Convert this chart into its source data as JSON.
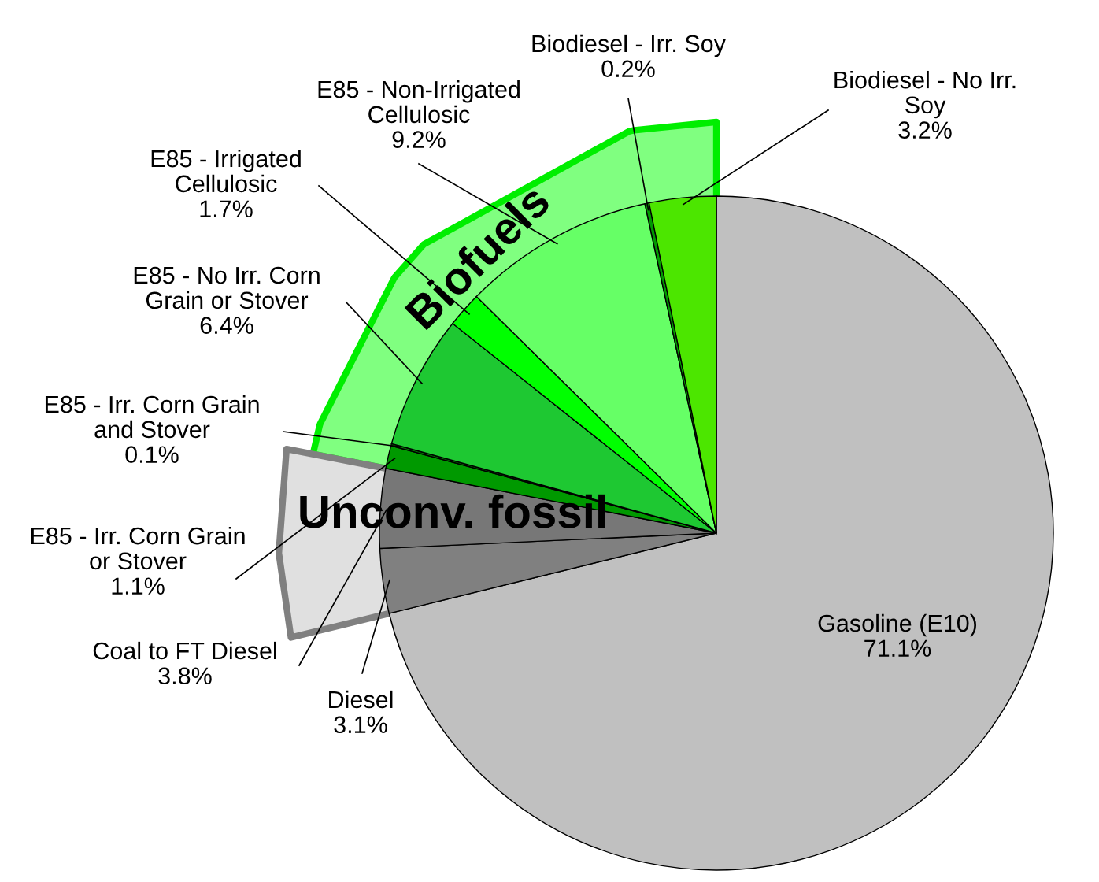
{
  "chart_data": {
    "type": "pie",
    "categories": [
      "Gasoline (E10)",
      "Diesel",
      "Coal to FT Diesel",
      "E85 - Irr. Corn Grain or Stover",
      "E85 - Irr. Corn Grain and Stover",
      "E85 - No Irr. Corn Grain or Stover",
      "E85 - Irrigated Cellulosic",
      "E85 - Non-Irrigated Cellulosic",
      "Biodiesel - Irr. Soy",
      "Biodiesel - No Irr. Soy"
    ],
    "values": [
      71.1,
      3.1,
      3.8,
      1.1,
      0.1,
      6.4,
      1.7,
      9.2,
      0.2,
      3.2
    ],
    "colors": [
      "#c0c0c0",
      "#808080",
      "#777777",
      "#009900",
      "#007a00",
      "#1ec832",
      "#00ff00",
      "#66ff66",
      "#009900",
      "#4ce600"
    ],
    "value_labels": [
      "71.1%",
      "3.1%",
      "3.8%",
      "1.1%",
      "0.1%",
      "6.4%",
      "1.7%",
      "9.2%",
      "0.2%",
      "3.2%"
    ],
    "annotations": [
      "Biofuels",
      "Unconv. fossil"
    ]
  }
}
